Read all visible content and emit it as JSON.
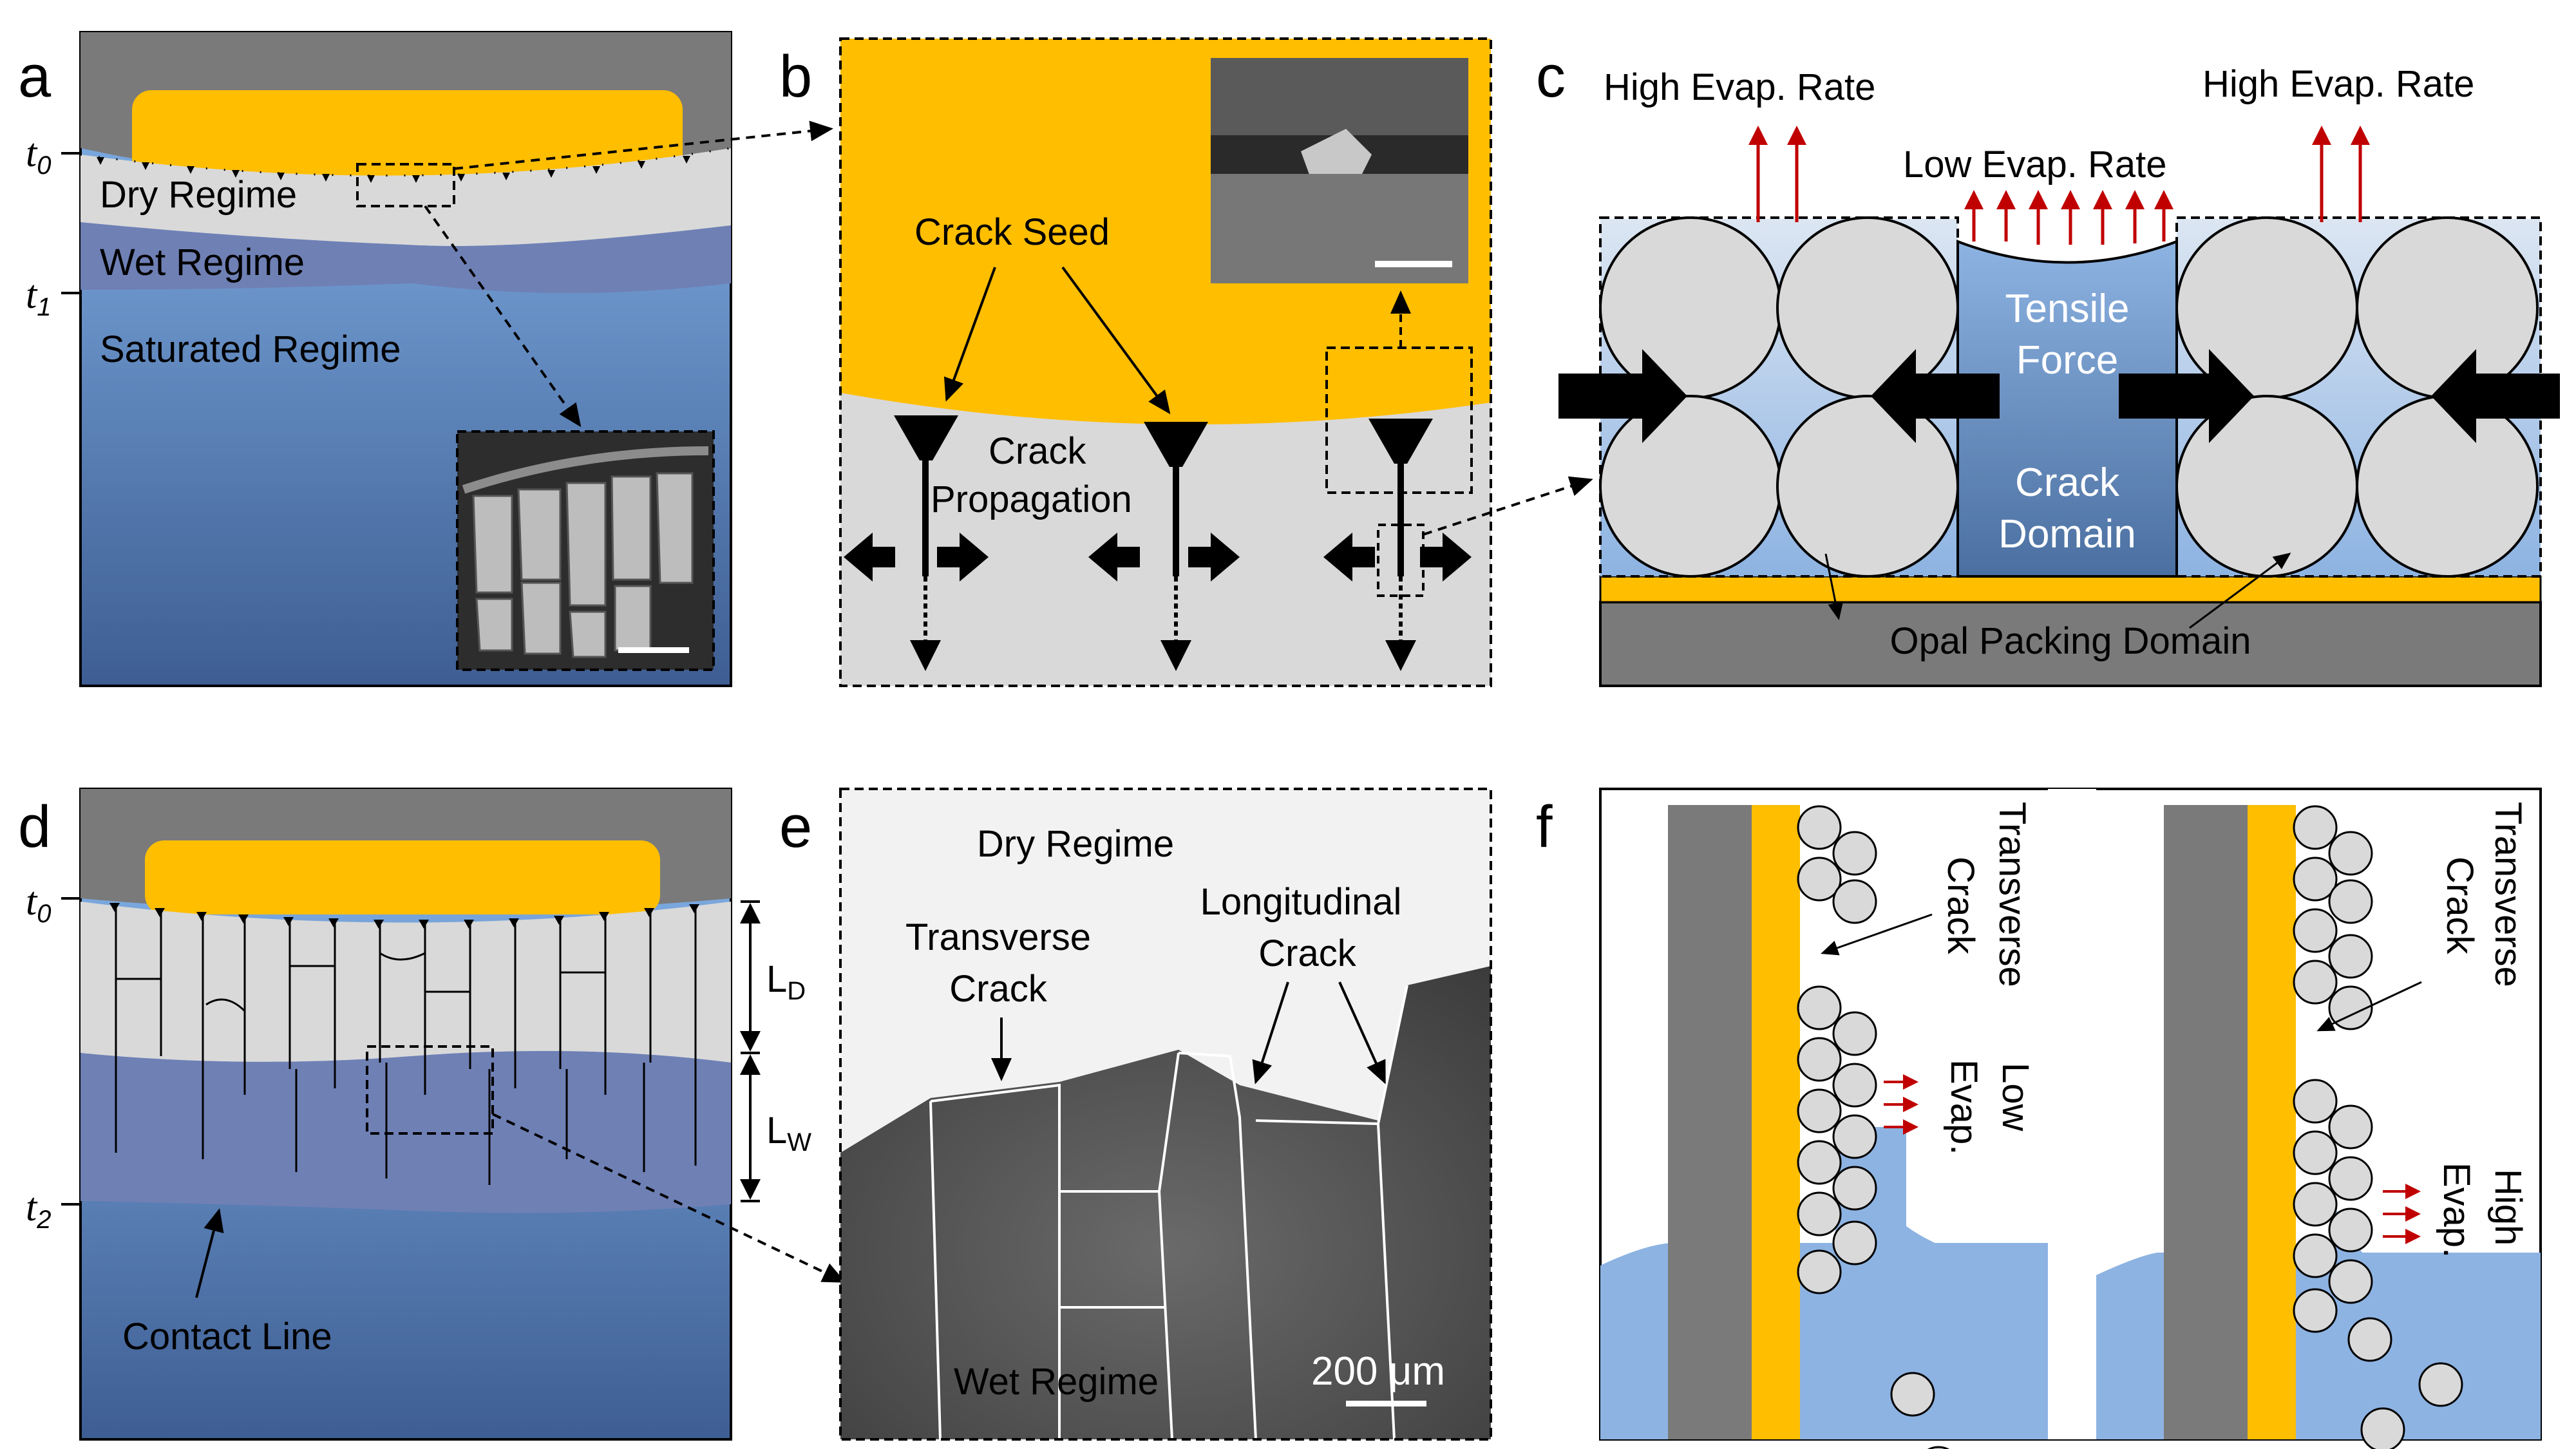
{
  "panels": {
    "a": {
      "label": "a",
      "time_labels": [
        "t",
        "0",
        "t",
        "1"
      ],
      "regimes": [
        "Dry Regime",
        "Wet Regime",
        "Saturated Regime"
      ]
    },
    "b": {
      "label": "b",
      "texts": [
        "Crack Seed",
        "Crack",
        "Propagation"
      ]
    },
    "c": {
      "label": "c",
      "high_evap_left": "High Evap. Rate",
      "high_evap_right": "High Evap. Rate",
      "low_evap": "Low Evap. Rate",
      "tensile": [
        "Tensile",
        "Force"
      ],
      "crack_domain": [
        "Crack",
        "Domain"
      ],
      "opal": "Opal Packing Domain"
    },
    "d": {
      "label": "d",
      "time_labels": [
        "t",
        "0",
        "t",
        "2"
      ],
      "ld": [
        "L",
        "D"
      ],
      "lw": [
        "L",
        "W"
      ],
      "contact_line": "Contact Line"
    },
    "e": {
      "label": "e",
      "dry": "Dry Regime",
      "transverse": [
        "Transverse",
        "Crack"
      ],
      "longitudinal": [
        "Longitudinal",
        "Crack"
      ],
      "wet": "Wet Regime",
      "scale": "200 μm"
    },
    "f": {
      "label": "f",
      "left": {
        "crack": [
          "Transverse",
          "Crack"
        ],
        "evap": [
          "Low",
          "Evap."
        ]
      },
      "right": {
        "crack": [
          "Transverse",
          "Crack"
        ],
        "evap": [
          "High",
          "Evap."
        ]
      }
    }
  },
  "colors": {
    "gold": "#FFBE00",
    "dark_gray": "#7A7A7A",
    "light_gray": "#D9D9D9",
    "wet_blue": "#6F80B5",
    "saturated_blue": "#7FAFE6",
    "liquid_blue": "#8DB3E2",
    "arrow_red": "#C00000"
  }
}
